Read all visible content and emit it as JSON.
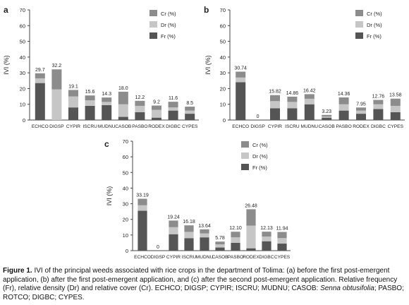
{
  "chart_data": [
    {
      "panel": "a",
      "type": "bar",
      "stacked": true,
      "ylabel": "IVI (%)",
      "ylim": [
        0,
        70
      ],
      "yticks": [
        0,
        10,
        20,
        30,
        40,
        50,
        60,
        70
      ],
      "categories": [
        "ECHCO",
        "DIGSP",
        "CYPIR",
        "ISCRU",
        "MUDNU",
        "CASOB",
        "PASBO",
        "RODEX",
        "DIGBC",
        "CYPES"
      ],
      "totals": [
        "29.7",
        "32.2",
        "19.1",
        "15.6",
        "14.3",
        "18.0",
        "12.2",
        "9.2",
        "11.6",
        "8.5"
      ],
      "series": [
        {
          "name": "Fr (%)",
          "values": [
            23.5,
            0.0,
            8.0,
            9.0,
            9.5,
            2.0,
            5.0,
            1.5,
            6.0,
            4.0
          ]
        },
        {
          "name": "Dr (%)",
          "values": [
            3.0,
            19.5,
            7.0,
            3.5,
            2.0,
            8.0,
            4.0,
            5.0,
            2.0,
            2.0
          ]
        },
        {
          "name": "Cr (%)",
          "values": [
            3.2,
            12.7,
            4.1,
            3.1,
            2.8,
            8.0,
            3.2,
            2.7,
            3.6,
            2.5
          ]
        }
      ],
      "legend_position": "top-right"
    },
    {
      "panel": "b",
      "type": "bar",
      "stacked": true,
      "ylabel": "IVI (%)",
      "ylim": [
        0,
        70
      ],
      "yticks": [
        0,
        10,
        20,
        30,
        40,
        50,
        60,
        70
      ],
      "categories": [
        "ECHCO",
        "DIGSP",
        "CYPIR",
        "ISCRU",
        "MUDNU",
        "CASOB",
        "PASBO",
        "RODEX",
        "DIGBC",
        "CYPES"
      ],
      "totals": [
        "30.74",
        "0",
        "15.82",
        "14.86",
        "16.42",
        "3.23",
        "14.36",
        "7.95",
        "12.76",
        "13.58"
      ],
      "series": [
        {
          "name": "Fr (%)",
          "values": [
            24.0,
            0.0,
            7.5,
            7.5,
            10.0,
            1.5,
            6.0,
            4.0,
            7.0,
            5.0
          ]
        },
        {
          "name": "Dr (%)",
          "values": [
            3.0,
            0.0,
            4.5,
            4.0,
            3.5,
            0.7,
            4.0,
            2.0,
            3.0,
            4.0
          ]
        },
        {
          "name": "Cr (%)",
          "values": [
            3.74,
            0.0,
            3.82,
            3.36,
            2.92,
            1.03,
            4.36,
            1.95,
            2.76,
            4.58
          ]
        }
      ],
      "legend_position": "top-right"
    },
    {
      "panel": "c",
      "type": "bar",
      "stacked": true,
      "ylabel": "IVI (%)",
      "ylim": [
        0,
        70
      ],
      "yticks": [
        0,
        10,
        20,
        30,
        40,
        50,
        60,
        70
      ],
      "categories": [
        "ECHCO",
        "DIGSP",
        "CYPIR",
        "ISCRU",
        "MUDNU",
        "CASOB",
        "PASBO",
        "RODEX",
        "DIGBC",
        "CYPES"
      ],
      "totals": [
        "33.19",
        "0",
        "19.24",
        "16.18",
        "13.64",
        "5.78",
        "12.10",
        "26.48",
        "12.13",
        "11.94"
      ],
      "series": [
        {
          "name": "Fr (%)",
          "values": [
            25.5,
            0.0,
            10.5,
            8.0,
            8.5,
            2.0,
            5.0,
            1.5,
            6.0,
            4.5
          ]
        },
        {
          "name": "Dr (%)",
          "values": [
            3.5,
            0.0,
            4.5,
            4.0,
            2.5,
            2.0,
            3.5,
            14.5,
            3.0,
            3.5
          ]
        },
        {
          "name": "Cr (%)",
          "values": [
            4.19,
            0.0,
            4.24,
            4.18,
            2.64,
            1.78,
            3.6,
            10.48,
            3.13,
            3.94
          ]
        }
      ],
      "legend_position": "top-right"
    }
  ],
  "colors": {
    "Fr (%)": "#555555",
    "Dr (%)": "#c6c6c6",
    "Cr (%)": "#8c8c8c",
    "axis": "#444444",
    "text": "#222222"
  },
  "caption": {
    "label": "Figure 1.",
    "text1": " IVI of the principal weeds associated with rice crops in the department of Tolima: (a) before the first post-emergent application, (b) after the first post-emergent application, and (c) after the second post-emergent application. Relative frequency (Fr), relative density (Dr) and relative cover (Cr). ECHCO; DIGSP; CYPIR; ISCRU; MUDNU; CASOB: ",
    "species": "Senna obtusifolia",
    "text2": "; PASBO; ROTCO; DIGBC; CYPES."
  }
}
